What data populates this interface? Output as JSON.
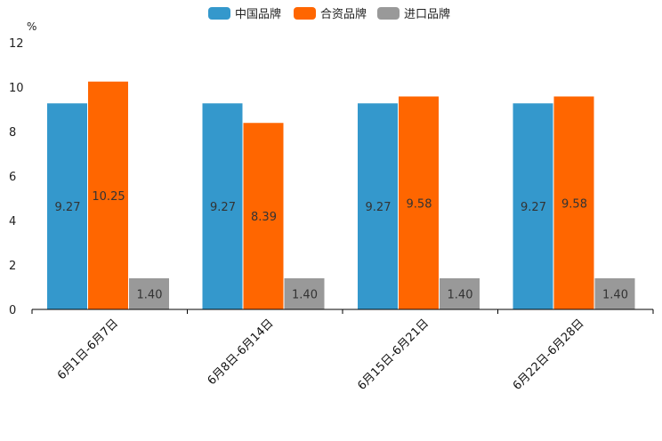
{
  "chart_data": {
    "type": "bar",
    "title": "",
    "xlabel": "",
    "ylabel": "%",
    "ylim": [
      0,
      12
    ],
    "yticks": [
      0,
      2,
      4,
      6,
      8,
      10,
      12
    ],
    "categories": [
      "6月1日-6月7日",
      "6月8日-6月14日",
      "6月15日-6月21日",
      "6月22日-6月28日"
    ],
    "series": [
      {
        "name": "中国品牌",
        "color": "#3498cc",
        "values": [
          9.27,
          9.27,
          9.27,
          9.27
        ],
        "labels": [
          "9.27",
          "9.27",
          "9.27",
          "9.27"
        ]
      },
      {
        "name": "合资品牌",
        "color": "#ff6600",
        "values": [
          10.25,
          8.39,
          9.58,
          9.58
        ],
        "labels": [
          "10.25",
          "8.39",
          "9.58",
          "9.58"
        ]
      },
      {
        "name": "进口品牌",
        "color": "#999999",
        "values": [
          1.4,
          1.4,
          1.4,
          1.4
        ],
        "labels": [
          "1.40",
          "1.40",
          "1.40",
          "1.40"
        ]
      }
    ],
    "legend_position": "top-center",
    "grid": false
  }
}
